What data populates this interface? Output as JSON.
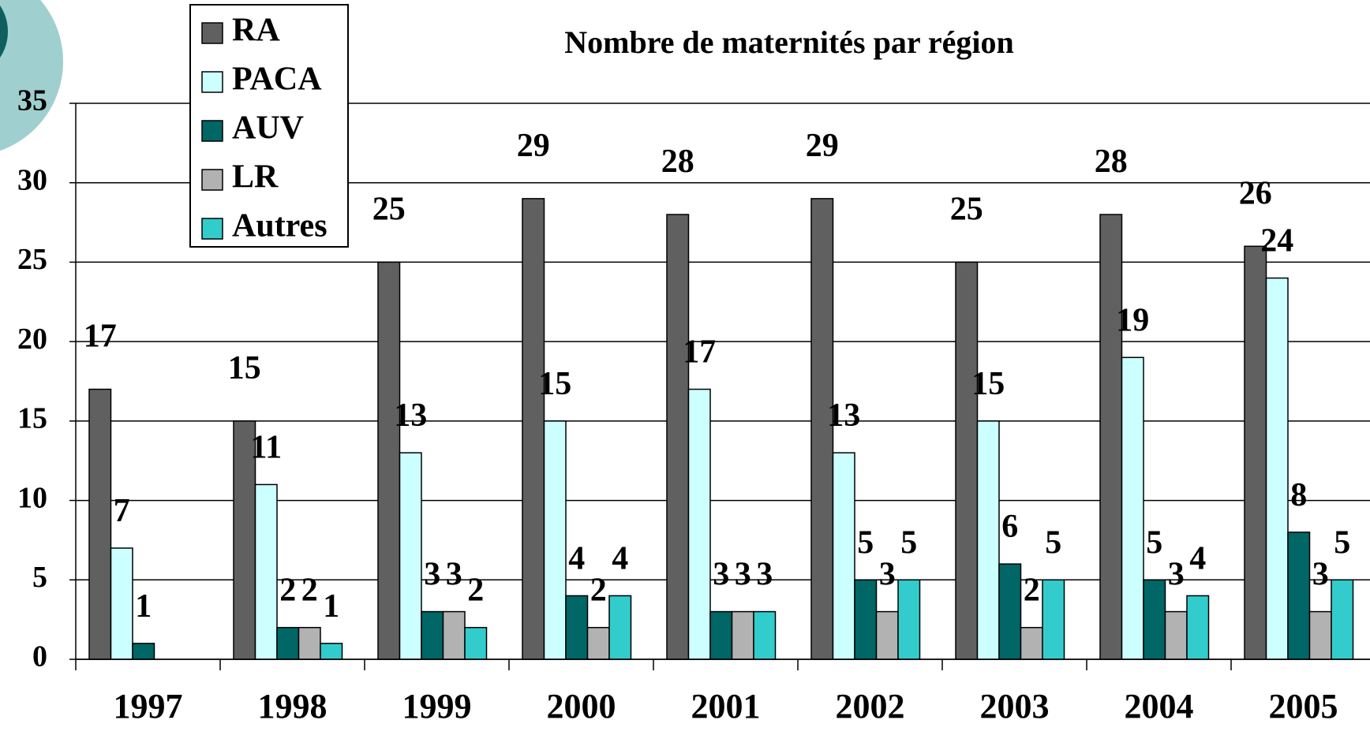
{
  "chart_data": {
    "type": "bar",
    "title": "Nombre de maternités par région",
    "categories": [
      "1997",
      "1998",
      "1999",
      "2000",
      "2001",
      "2002",
      "2003",
      "2004",
      "2005"
    ],
    "series": [
      {
        "name": "RA",
        "color": "#606060",
        "values": [
          17,
          15,
          25,
          29,
          28,
          29,
          25,
          28,
          26
        ]
      },
      {
        "name": "PACA",
        "color": "#ccffff",
        "values": [
          7,
          11,
          13,
          15,
          17,
          13,
          15,
          19,
          24
        ]
      },
      {
        "name": "AUV",
        "color": "#006666",
        "values": [
          1,
          2,
          3,
          4,
          3,
          5,
          6,
          5,
          8
        ]
      },
      {
        "name": "LR",
        "color": "#b2b2b2",
        "values": [
          null,
          2,
          3,
          2,
          3,
          3,
          2,
          3,
          3
        ]
      },
      {
        "name": "Autres",
        "color": "#33cccc",
        "values": [
          null,
          1,
          2,
          4,
          3,
          5,
          5,
          4,
          5
        ]
      }
    ],
    "ylim": [
      0,
      35
    ],
    "yticks": [
      0,
      5,
      10,
      15,
      20,
      25,
      30,
      35
    ],
    "grid": true
  }
}
